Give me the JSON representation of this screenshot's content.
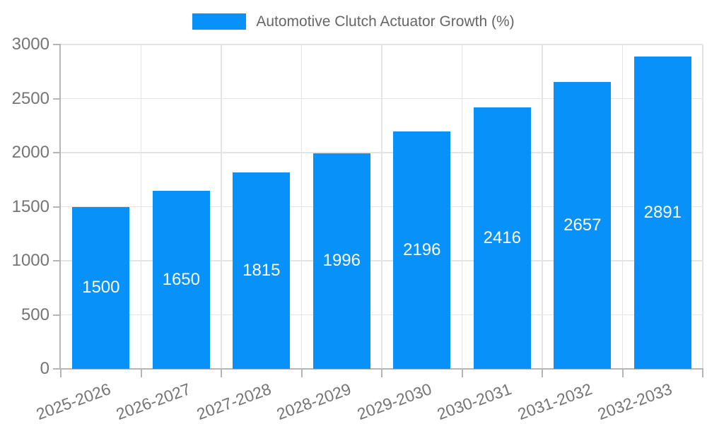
{
  "legend": {
    "series_label": "Automotive Clutch Actuator Growth (%)"
  },
  "chart_data": {
    "type": "bar",
    "title": "",
    "series_name": "Automotive Clutch Actuator Growth (%)",
    "categories": [
      "2025-2026",
      "2026-2027",
      "2027-2028",
      "2028-2029",
      "2029-2030",
      "2030-2031",
      "2031-2032",
      "2032-2033"
    ],
    "values": [
      1500,
      1650,
      1815,
      1996,
      2196,
      2416,
      2657,
      2891
    ],
    "xlabel": "",
    "ylabel": "",
    "ylim": [
      0,
      3000
    ],
    "yticks": [
      0,
      500,
      1000,
      1500,
      2000,
      2500,
      3000
    ],
    "grid": true,
    "legend_position": "top",
    "value_labels_inside_bars": true,
    "x_tick_rotation_deg": -20,
    "colors": {
      "bar": "#0891f8",
      "grid": "#e4e4e4",
      "axis": "#b5b5b5",
      "tick_text": "#757575",
      "legend_text": "#666666",
      "value_text": "#ffffff",
      "background": "#ffffff"
    }
  }
}
